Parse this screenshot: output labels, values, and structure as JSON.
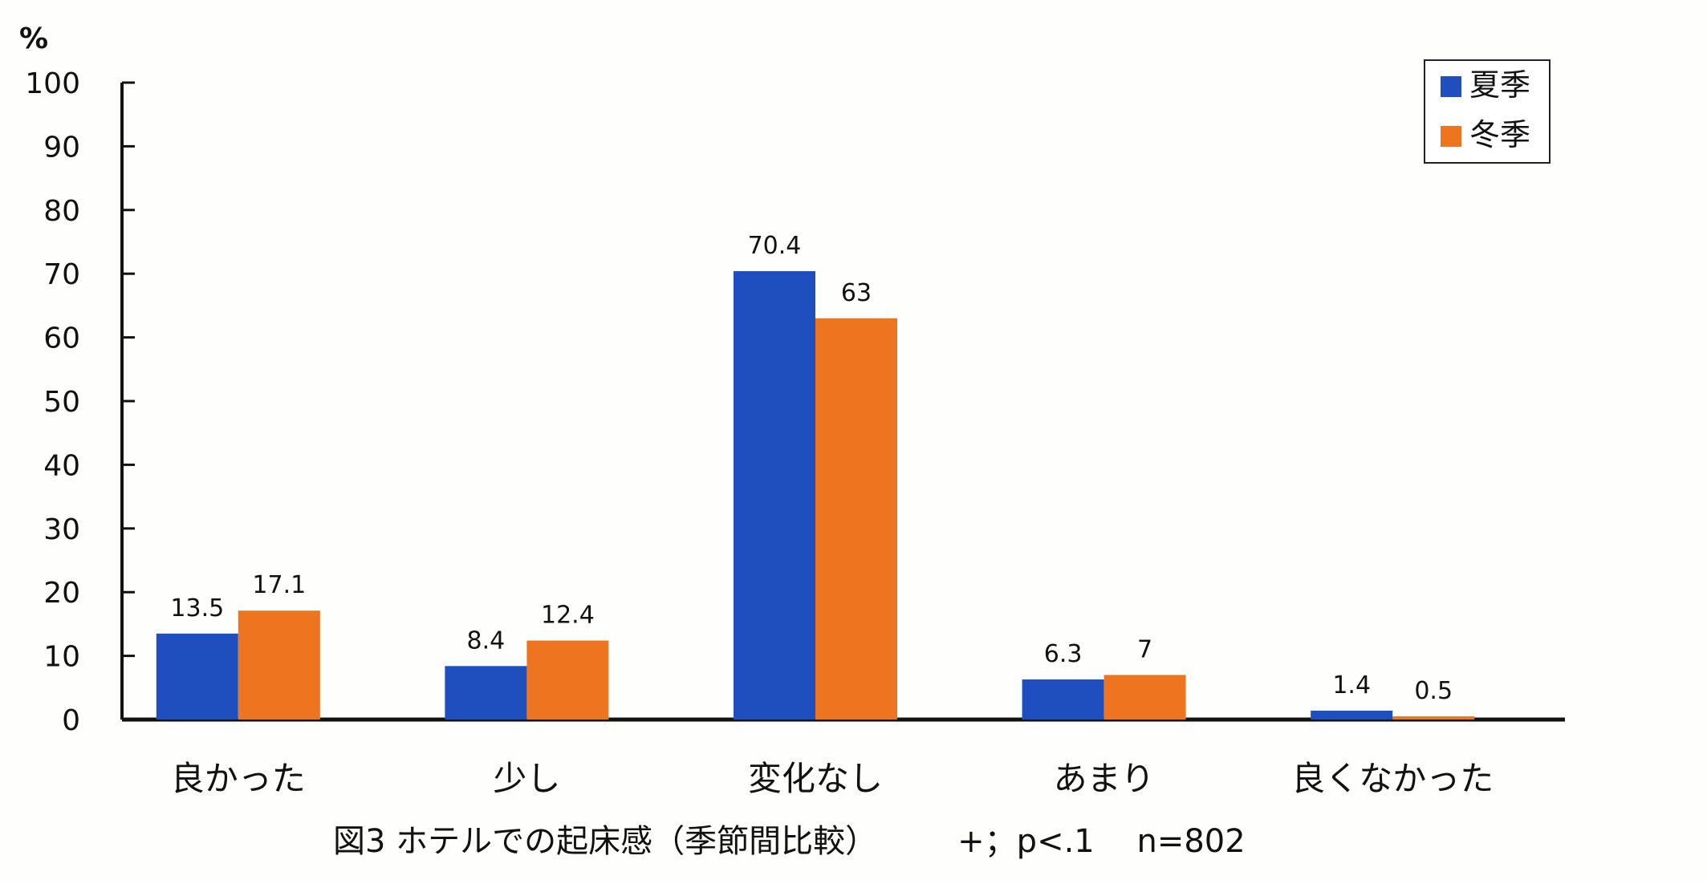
{
  "chart_data": {
    "type": "bar",
    "title": "",
    "ylabel": "%",
    "xlabel": "",
    "ylim": [
      0,
      100
    ],
    "yticks": [
      0,
      10,
      20,
      30,
      40,
      50,
      60,
      70,
      80,
      90,
      100
    ],
    "grid": false,
    "legend_position": "top-right",
    "categories": [
      "良かった",
      "少し",
      "変化なし",
      "あまり",
      "良くなかった"
    ],
    "series": [
      {
        "name": "夏季",
        "color": "#1f4fbf",
        "values": [
          13.5,
          8.4,
          70.4,
          6.3,
          1.4
        ]
      },
      {
        "name": "冬季",
        "color": "#ee7520",
        "values": [
          17.1,
          12.4,
          63,
          7,
          0.5
        ]
      }
    ],
    "data_labels": [
      [
        "13.5",
        "8.4",
        "70.4",
        "6.3",
        "1.4"
      ],
      [
        "17.1",
        "12.4",
        "63",
        "7",
        "0.5"
      ]
    ],
    "caption": "図3 ホテルでの起床感（季節間比較）　　　+；p<.1　 n=802"
  }
}
